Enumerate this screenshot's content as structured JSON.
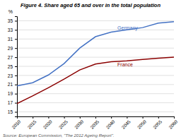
{
  "chart_data": {
    "type": "line",
    "title": "Figure 4. Share aged 65 and over in the total population",
    "ylabel": "%",
    "source": "Source: European Commission, \"The 2012 Ageing Report\".",
    "x": [
      2010,
      2015,
      2020,
      2025,
      2030,
      2035,
      2040,
      2045,
      2050,
      2055,
      2060
    ],
    "series": [
      {
        "color": "#4472c4",
        "values": [
          20.7,
          21.4,
          23.1,
          25.6,
          29.0,
          31.5,
          32.5,
          33.0,
          33.5,
          34.5,
          34.8
        ]
      },
      {
        "color": "#8b0000",
        "values": [
          16.8,
          18.5,
          20.3,
          22.2,
          24.2,
          25.5,
          26.0,
          26.2,
          26.5,
          26.8,
          27.0
        ]
      }
    ],
    "annotations": [
      {
        "text": "Germany",
        "x": 2042,
        "y": 33.4,
        "color": "#4472c4"
      },
      {
        "text": "France",
        "x": 2042,
        "y": 25.3,
        "color": "#8b0000"
      }
    ],
    "xlim": [
      2010,
      2060
    ],
    "xticks": [
      2010,
      2015,
      2020,
      2025,
      2030,
      2035,
      2040,
      2045,
      2050,
      2055,
      2060
    ],
    "ylim": [
      14,
      36
    ],
    "yticks": [
      15,
      17,
      19,
      21,
      23,
      25,
      27,
      29,
      31,
      33,
      35
    ],
    "grid": true
  }
}
